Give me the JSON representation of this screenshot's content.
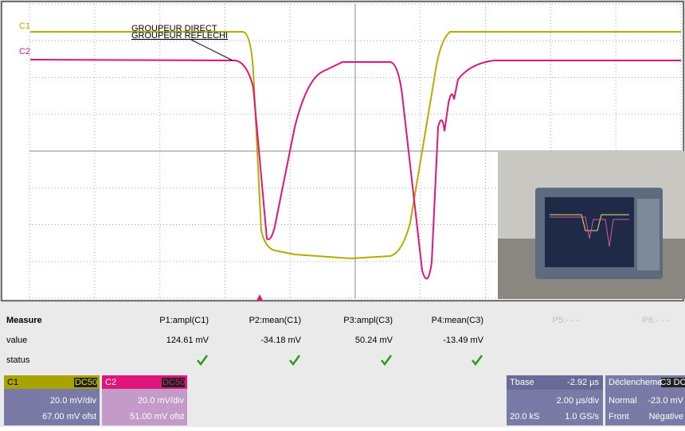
{
  "traces": {
    "c1_label": "C1",
    "c2_label": "C2"
  },
  "annotations": [
    "GROUPEUR DIRECT",
    "GROUPEUR REFLECHI"
  ],
  "measure": {
    "headers": [
      "Measure",
      "P1:ampl(C1)",
      "P2:mean(C1)",
      "P3:ampl(C3)",
      "P4:mean(C3)",
      "P5:- - -",
      "P6:- - -"
    ],
    "value_row": [
      "value",
      "124.61 mV",
      "-34.18 mV",
      "50.24 mV",
      "-13.49 mV"
    ],
    "status_label": "status"
  },
  "channels": [
    {
      "name": "C1",
      "coupling": "DC50",
      "scale": "20.0 mV/div",
      "offset": "67.00 mV ofst"
    },
    {
      "name": "C2",
      "coupling": "DC50",
      "scale": "20.0 mV/div",
      "offset": "51.00 mV ofst"
    }
  ],
  "timebase": {
    "title": "Tbase",
    "delay": "-2.92 µs",
    "scale": "2.00 µs/div",
    "samples": "20.0 kS",
    "rate": "1.0 GS/s"
  },
  "trigger": {
    "title": "Déclencheme",
    "badge": "C3 DC",
    "mode": "Normal",
    "level": "-23.0 mV",
    "type": "Front",
    "slope": "Négative"
  }
}
